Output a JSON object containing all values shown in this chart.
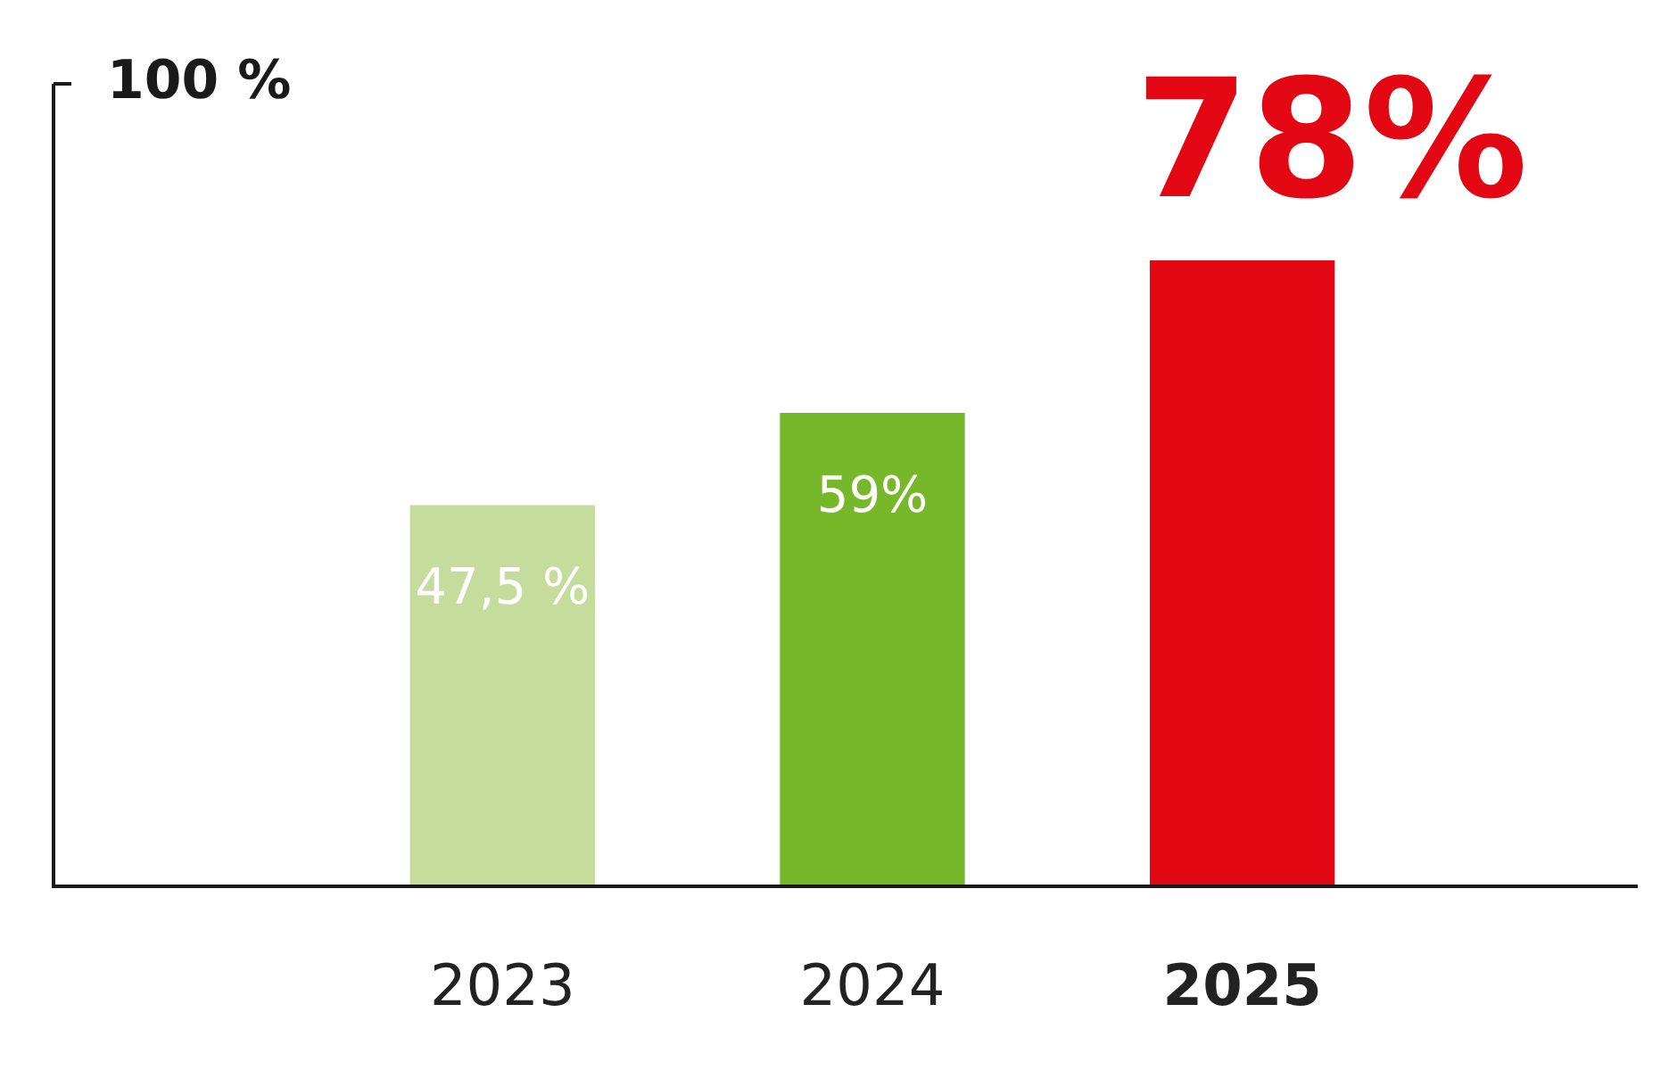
{
  "chart_data": {
    "type": "bar",
    "categories": [
      "2023",
      "2024",
      "2025"
    ],
    "values": [
      47.5,
      59,
      78
    ],
    "colors": [
      "#c5dc9c",
      "#76b82a",
      "#e30613"
    ],
    "value_labels": [
      "47,5 %",
      "59%",
      "78%"
    ],
    "ylim": [
      0,
      100
    ],
    "yticks": [
      {
        "value": 100,
        "label": "100 %"
      }
    ],
    "grid": false,
    "legend": false
  }
}
